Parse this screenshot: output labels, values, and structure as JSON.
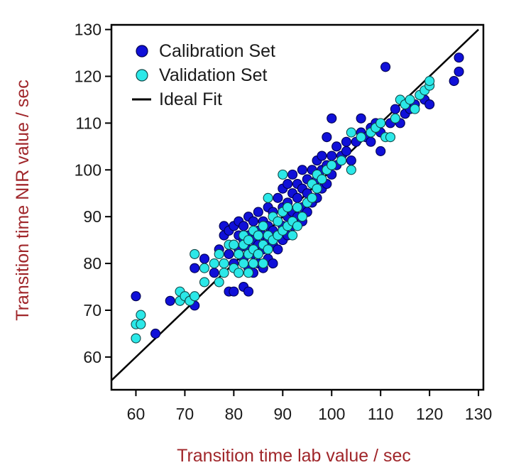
{
  "chart_data": {
    "type": "scatter",
    "xlabel": "Transition time lab value / sec",
    "ylabel": "Transition time NIR value / sec",
    "xlim": [
      55,
      131
    ],
    "ylim": [
      53,
      131
    ],
    "x_ticks": [
      60,
      70,
      80,
      90,
      100,
      110,
      120,
      130
    ],
    "y_ticks": [
      60,
      70,
      80,
      90,
      100,
      110,
      120,
      130
    ],
    "grid": false,
    "legend_placement": "top-left",
    "ideal_fit": {
      "name": "Ideal Fit",
      "from": [
        55,
        55
      ],
      "to": [
        130,
        130
      ],
      "color": "#000000"
    },
    "series": [
      {
        "name": "Calibration Set",
        "color": "#1010d8",
        "edge": "#000050",
        "points": [
          [
            60,
            73
          ],
          [
            64,
            65
          ],
          [
            67,
            72
          ],
          [
            72,
            71
          ],
          [
            72,
            79
          ],
          [
            74,
            81
          ],
          [
            76,
            78
          ],
          [
            77,
            83
          ],
          [
            78,
            86
          ],
          [
            78,
            88
          ],
          [
            79,
            87
          ],
          [
            79,
            82
          ],
          [
            79,
            74
          ],
          [
            80,
            80
          ],
          [
            80,
            84
          ],
          [
            80,
            88
          ],
          [
            80,
            74
          ],
          [
            81,
            78
          ],
          [
            81,
            83
          ],
          [
            81,
            86
          ],
          [
            81,
            89
          ],
          [
            82,
            75
          ],
          [
            82,
            81
          ],
          [
            82,
            85
          ],
          [
            82,
            88
          ],
          [
            83,
            74
          ],
          [
            83,
            79
          ],
          [
            83,
            83
          ],
          [
            83,
            86
          ],
          [
            83,
            90
          ],
          [
            84,
            78
          ],
          [
            84,
            82
          ],
          [
            84,
            85
          ],
          [
            84,
            89
          ],
          [
            85,
            80
          ],
          [
            85,
            84
          ],
          [
            85,
            87
          ],
          [
            85,
            91
          ],
          [
            86,
            79
          ],
          [
            86,
            83
          ],
          [
            86,
            86
          ],
          [
            86,
            89
          ],
          [
            87,
            81
          ],
          [
            87,
            85
          ],
          [
            87,
            88
          ],
          [
            87,
            92
          ],
          [
            88,
            80
          ],
          [
            88,
            84
          ],
          [
            88,
            87
          ],
          [
            88,
            91
          ],
          [
            89,
            83
          ],
          [
            89,
            86
          ],
          [
            89,
            89
          ],
          [
            89,
            94
          ],
          [
            90,
            85
          ],
          [
            90,
            88
          ],
          [
            90,
            92
          ],
          [
            90,
            96
          ],
          [
            91,
            86
          ],
          [
            91,
            90
          ],
          [
            91,
            93
          ],
          [
            91,
            97
          ],
          [
            92,
            88
          ],
          [
            92,
            91
          ],
          [
            92,
            95
          ],
          [
            92,
            99
          ],
          [
            93,
            90
          ],
          [
            93,
            94
          ],
          [
            93,
            97
          ],
          [
            94,
            89
          ],
          [
            94,
            92
          ],
          [
            94,
            96
          ],
          [
            94,
            100
          ],
          [
            95,
            91
          ],
          [
            95,
            95
          ],
          [
            95,
            98
          ],
          [
            96,
            93
          ],
          [
            96,
            97
          ],
          [
            96,
            100
          ],
          [
            97,
            94
          ],
          [
            97,
            98
          ],
          [
            97,
            102
          ],
          [
            98,
            96
          ],
          [
            98,
            100
          ],
          [
            98,
            103
          ],
          [
            99,
            97
          ],
          [
            99,
            101
          ],
          [
            99,
            107
          ],
          [
            100,
            99
          ],
          [
            100,
            103
          ],
          [
            100,
            111
          ],
          [
            101,
            101
          ],
          [
            101,
            105
          ],
          [
            102,
            103
          ],
          [
            103,
            104
          ],
          [
            103,
            106
          ],
          [
            104,
            102
          ],
          [
            105,
            106
          ],
          [
            106,
            108
          ],
          [
            106,
            111
          ],
          [
            107,
            107
          ],
          [
            108,
            109
          ],
          [
            108,
            106
          ],
          [
            109,
            110
          ],
          [
            110,
            108
          ],
          [
            110,
            104
          ],
          [
            111,
            122
          ],
          [
            112,
            110
          ],
          [
            113,
            113
          ],
          [
            114,
            110
          ],
          [
            115,
            112
          ],
          [
            116,
            113
          ],
          [
            117,
            114
          ],
          [
            118,
            116
          ],
          [
            119,
            115
          ],
          [
            120,
            114
          ],
          [
            125,
            119
          ],
          [
            126,
            121
          ],
          [
            126,
            124
          ]
        ]
      },
      {
        "name": "Validation Set",
        "color": "#2be8e8",
        "edge": "#104848",
        "points": [
          [
            60,
            64
          ],
          [
            60,
            67
          ],
          [
            61,
            69
          ],
          [
            61,
            67
          ],
          [
            69,
            72
          ],
          [
            69,
            74
          ],
          [
            70,
            73
          ],
          [
            71,
            72
          ],
          [
            72,
            73
          ],
          [
            72,
            82
          ],
          [
            74,
            79
          ],
          [
            74,
            76
          ],
          [
            76,
            80
          ],
          [
            77,
            82
          ],
          [
            77,
            76
          ],
          [
            78,
            80
          ],
          [
            78,
            78
          ],
          [
            79,
            84
          ],
          [
            80,
            79
          ],
          [
            80,
            84
          ],
          [
            81,
            78
          ],
          [
            81,
            82
          ],
          [
            82,
            80
          ],
          [
            82,
            84
          ],
          [
            82,
            86
          ],
          [
            83,
            78
          ],
          [
            83,
            82
          ],
          [
            83,
            85
          ],
          [
            84,
            80
          ],
          [
            84,
            83
          ],
          [
            84,
            87
          ],
          [
            85,
            82
          ],
          [
            85,
            86
          ],
          [
            86,
            80
          ],
          [
            86,
            84
          ],
          [
            86,
            88
          ],
          [
            87,
            83
          ],
          [
            87,
            86
          ],
          [
            87,
            94
          ],
          [
            88,
            85
          ],
          [
            88,
            90
          ],
          [
            89,
            86
          ],
          [
            89,
            89
          ],
          [
            90,
            87
          ],
          [
            90,
            91
          ],
          [
            90,
            99
          ],
          [
            91,
            88
          ],
          [
            91,
            92
          ],
          [
            92,
            86
          ],
          [
            92,
            89
          ],
          [
            93,
            88
          ],
          [
            93,
            92
          ],
          [
            94,
            90
          ],
          [
            95,
            93
          ],
          [
            96,
            94
          ],
          [
            96,
            97
          ],
          [
            97,
            96
          ],
          [
            97,
            99
          ],
          [
            98,
            98
          ],
          [
            99,
            100
          ],
          [
            100,
            101
          ],
          [
            102,
            102
          ],
          [
            104,
            100
          ],
          [
            104,
            108
          ],
          [
            106,
            107
          ],
          [
            108,
            108
          ],
          [
            109,
            109
          ],
          [
            110,
            110
          ],
          [
            111,
            107
          ],
          [
            112,
            107
          ],
          [
            113,
            111
          ],
          [
            114,
            115
          ],
          [
            115,
            114
          ],
          [
            116,
            115
          ],
          [
            117,
            113
          ],
          [
            118,
            116
          ],
          [
            119,
            117
          ],
          [
            120,
            118
          ],
          [
            120,
            119
          ]
        ]
      }
    ]
  }
}
